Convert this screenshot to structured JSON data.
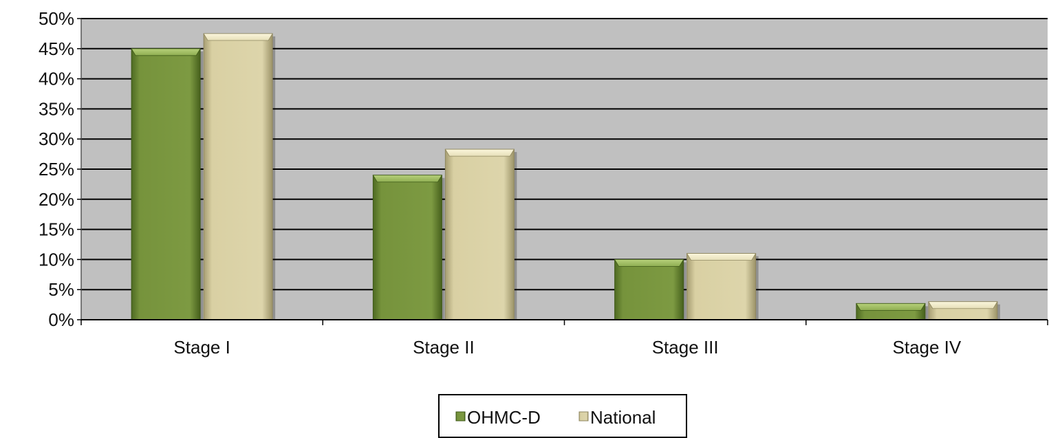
{
  "chart_data": {
    "type": "bar",
    "categories": [
      "Stage I",
      "Stage II",
      "Stage III",
      "Stage IV"
    ],
    "series": [
      {
        "name": "OHMC-D",
        "values": [
          45,
          24,
          10,
          2.7
        ]
      },
      {
        "name": "National",
        "values": [
          47.5,
          28.3,
          11,
          3
        ]
      }
    ],
    "ylim": [
      0,
      50
    ],
    "yticks": [
      "0%",
      "5%",
      "10%",
      "15%",
      "20%",
      "25%",
      "30%",
      "35%",
      "40%",
      "45%",
      "50%"
    ],
    "legend": {
      "position": "bottom",
      "labels": [
        "OHMC-D",
        "National"
      ]
    },
    "grid": true,
    "colors": {
      "plot_background": "#c0c0c0",
      "gridline": "#000000",
      "OHMC-D": "#76933c",
      "National": "#d9d0a3"
    }
  }
}
